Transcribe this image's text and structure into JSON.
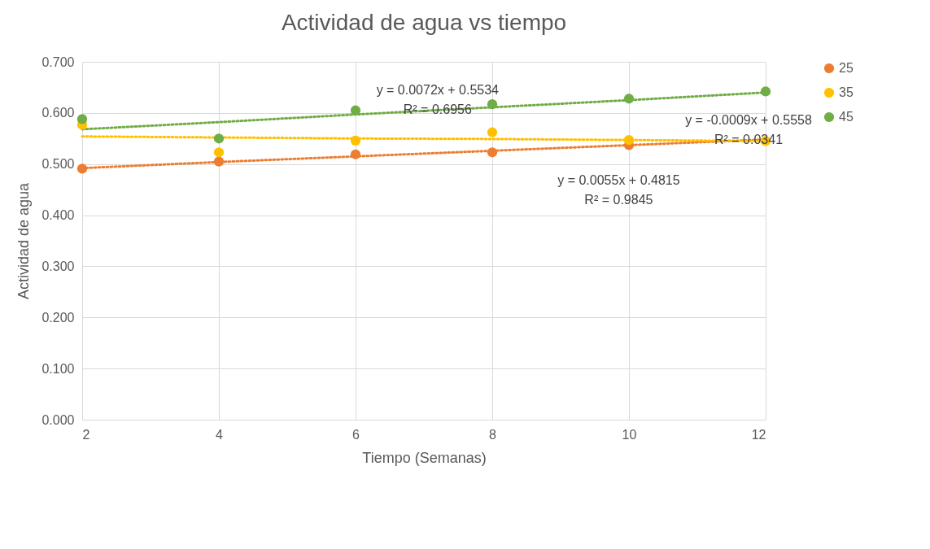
{
  "chart_data": {
    "type": "scatter",
    "title": "Actividad de agua vs tiempo",
    "xlabel": "Tiempo (Semanas)",
    "ylabel": "Actividad de agua",
    "x": [
      2,
      4,
      6,
      8,
      10,
      12
    ],
    "xlim": [
      2,
      12
    ],
    "xticks": [
      2,
      4,
      6,
      8,
      10,
      12
    ],
    "ylim": [
      0,
      0.7
    ],
    "yticks": [
      {
        "value": 0,
        "label": "0.000"
      },
      {
        "value": 0.1,
        "label": "0.100"
      },
      {
        "value": 0.2,
        "label": "0.200"
      },
      {
        "value": 0.3,
        "label": "0.300"
      },
      {
        "value": 0.4,
        "label": "0.400"
      },
      {
        "value": 0.5,
        "label": "0.500"
      },
      {
        "value": 0.6,
        "label": "0.600"
      },
      {
        "value": 0.7,
        "label": "0.700"
      }
    ],
    "grid": true,
    "legend": "right",
    "series": [
      {
        "name": "25",
        "color": "#ed7d31",
        "marker": "circle",
        "values": [
          0.491,
          0.505,
          0.519,
          0.523,
          0.537,
          null
        ]
      },
      {
        "name": "35",
        "color": "#ffc000",
        "marker": "circle",
        "values": [
          0.577,
          0.523,
          0.546,
          0.562,
          0.547,
          0.545
        ]
      },
      {
        "name": "45",
        "color": "#70ad47",
        "marker": "circle",
        "values": [
          0.588,
          0.55,
          0.605,
          0.617,
          0.628,
          0.642
        ]
      },
      {
        "type": "line",
        "line_style": "dotted",
        "color": "#ed7d31",
        "values": [
          0.492,
          0.504,
          0.515,
          0.526,
          0.537,
          0.548
        ]
      },
      {
        "type": "line",
        "line_style": "dotted",
        "color": "#ffc000",
        "values": [
          0.554,
          0.552,
          0.55,
          0.549,
          0.547,
          0.545
        ]
      },
      {
        "type": "line",
        "line_style": "dotted",
        "color": "#70ad47",
        "values": [
          0.568,
          0.582,
          0.597,
          0.611,
          0.625,
          0.64
        ]
      }
    ],
    "annotations": [
      {
        "text": "y = 0.0072x + 0.5534\nR² = 0.6956",
        "x": 7.2,
        "y": 0.605
      },
      {
        "text": "y = -0.0009x + 0.5558\nR² = 0.0341",
        "x": 11.75,
        "y": 0.545
      },
      {
        "text": "y = 0.0055x + 0.4815\nR² = 0.9845",
        "x": 9.85,
        "y": 0.536
      }
    ]
  }
}
